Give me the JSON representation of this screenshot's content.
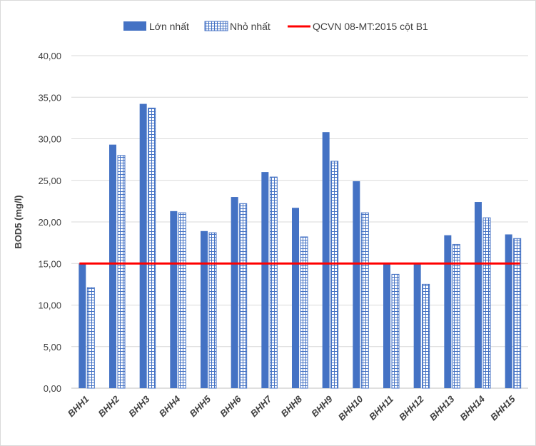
{
  "chart_data": {
    "type": "bar",
    "title": "",
    "xlabel": "",
    "ylabel": "BOD5 (mg/l)",
    "ylim": [
      0,
      40
    ],
    "yticks": [
      "0,00",
      "5,00",
      "10,00",
      "15,00",
      "20,00",
      "25,00",
      "30,00",
      "35,00",
      "40,00"
    ],
    "grid": true,
    "legend_position": "top",
    "categories": [
      "BHH1",
      "BHH2",
      "BHH3",
      "BHH4",
      "BHH5",
      "BHH6",
      "BHH7",
      "BHH8",
      "BHH9",
      "BHH10",
      "BHH11",
      "BHH12",
      "BHH13",
      "BHH14",
      "BHH15"
    ],
    "series": [
      {
        "name": "Lớn nhất",
        "color": "#4472c4",
        "values": [
          15.0,
          29.3,
          34.2,
          21.3,
          18.9,
          23.0,
          26.0,
          21.7,
          30.8,
          24.9,
          15.0,
          15.0,
          18.4,
          22.4,
          18.5
        ]
      },
      {
        "name": "Nhỏ nhất",
        "color": "#4472c4",
        "pattern": "grid",
        "values": [
          12.1,
          28.0,
          33.7,
          21.1,
          18.7,
          22.2,
          25.4,
          18.2,
          27.3,
          21.1,
          13.7,
          12.5,
          17.3,
          20.5,
          18.0
        ]
      }
    ],
    "reference_line": {
      "name": "QCVN 08-MT:2015 cột B1",
      "value": 15,
      "color": "#ff0000"
    }
  }
}
